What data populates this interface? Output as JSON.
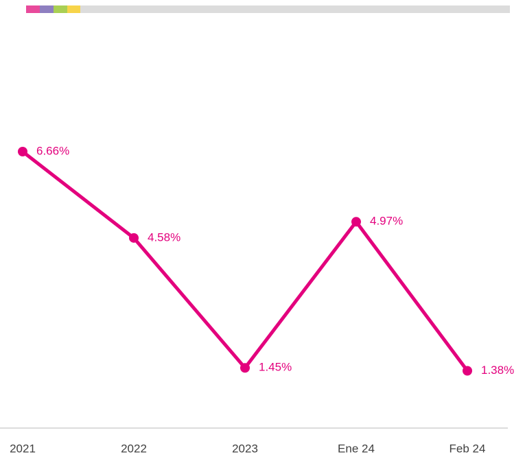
{
  "chart_data": {
    "type": "line",
    "categories": [
      "2021",
      "2022",
      "2023",
      "Ene 24",
      "Feb 24"
    ],
    "series": [
      {
        "color": "#e3007d",
        "values": [
          6.66,
          4.58,
          1.45,
          4.97,
          1.38
        ],
        "value_labels": [
          "6.66%",
          "4.58%",
          "1.45%",
          "4.97%",
          "1.38%"
        ]
      }
    ]
  }
}
